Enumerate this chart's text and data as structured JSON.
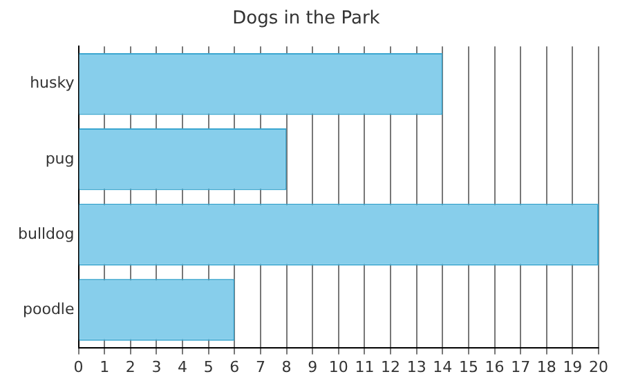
{
  "chart_data": {
    "type": "bar",
    "orientation": "horizontal",
    "title": "Dogs in the Park",
    "categories": [
      "husky",
      "pug",
      "bulldog",
      "poodle"
    ],
    "values": [
      14,
      8,
      20,
      6
    ],
    "color": "#87ceeb",
    "xlim": [
      0,
      20
    ],
    "xticks": [
      0,
      1,
      2,
      3,
      4,
      5,
      6,
      7,
      8,
      9,
      10,
      11,
      12,
      13,
      14,
      15,
      16,
      17,
      18,
      19,
      20
    ],
    "grid": "x",
    "legend": false
  }
}
